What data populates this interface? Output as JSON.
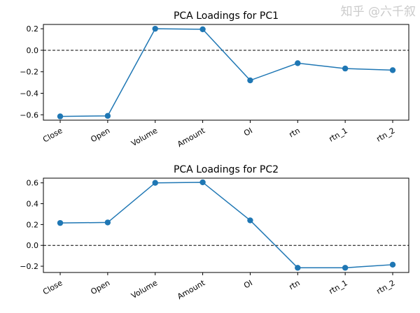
{
  "chart_data": [
    {
      "type": "line",
      "title": "PCA Loadings for PC1",
      "categories": [
        "Close",
        "Open",
        "Volume",
        "Amount",
        "OI",
        "rtn",
        "rtn_1",
        "rtn_2"
      ],
      "values": [
        -0.615,
        -0.61,
        0.2,
        0.195,
        -0.28,
        -0.12,
        -0.17,
        -0.185
      ],
      "ylim": [
        -0.65,
        0.24
      ],
      "yticks": [
        0.2,
        0.0,
        -0.2,
        -0.4,
        -0.6
      ],
      "ytick_labels": [
        "0.2",
        "0.0",
        "−0.2",
        "−0.4",
        "−0.6"
      ],
      "reference_line": 0,
      "grid": false,
      "color": "#1f77b4"
    },
    {
      "type": "line",
      "title": "PCA Loadings for PC2",
      "categories": [
        "Close",
        "Open",
        "Volume",
        "Amount",
        "OI",
        "rtn",
        "rtn_1",
        "rtn_2"
      ],
      "values": [
        0.215,
        0.22,
        0.6,
        0.605,
        0.24,
        -0.215,
        -0.215,
        -0.185
      ],
      "ylim": [
        -0.26,
        0.645
      ],
      "yticks": [
        0.6,
        0.4,
        0.2,
        0.0,
        -0.2
      ],
      "ytick_labels": [
        "0.6",
        "0.4",
        "0.2",
        "0.0",
        "−0.2"
      ],
      "reference_line": 0,
      "grid": false,
      "color": "#1f77b4"
    }
  ],
  "watermark": "知乎 @六千叙"
}
